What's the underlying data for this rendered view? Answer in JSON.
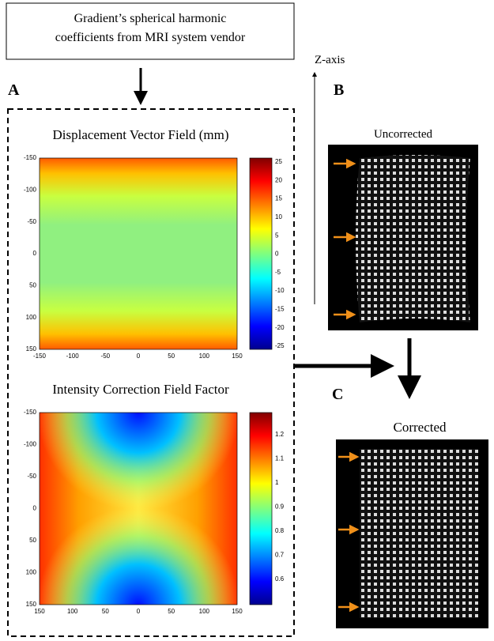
{
  "source_box": {
    "lines": [
      "Gradient’s spherical harmonic",
      "coefficients from MRI system vendor"
    ]
  },
  "labels": {
    "a": "A",
    "b": "B",
    "c": "C",
    "z_axis": "Z-axis"
  },
  "panels": [
    {
      "title": "Displacement Vector Field (mm)",
      "y_ticks": [
        -150,
        -100,
        -50,
        0,
        50,
        100,
        150
      ],
      "x_ticks": [
        -150,
        -100,
        -50,
        0,
        50,
        100,
        150
      ],
      "colorbar_ticks": [
        25,
        20,
        15,
        10,
        5,
        0,
        -5,
        -10,
        -15,
        -20,
        -25
      ]
    },
    {
      "title": "Intensity Correction Field Factor",
      "y_ticks": [
        -150,
        -100,
        -50,
        0,
        50,
        100,
        150
      ],
      "x_ticks": [
        150,
        100,
        50,
        0,
        50,
        100,
        150
      ],
      "colorbar_ticks": [
        1.2,
        1.1,
        1,
        0.9,
        0.8,
        0.7,
        0.6
      ]
    }
  ],
  "images": [
    {
      "title": "Uncorrected"
    },
    {
      "title": "Corrected"
    }
  ]
}
